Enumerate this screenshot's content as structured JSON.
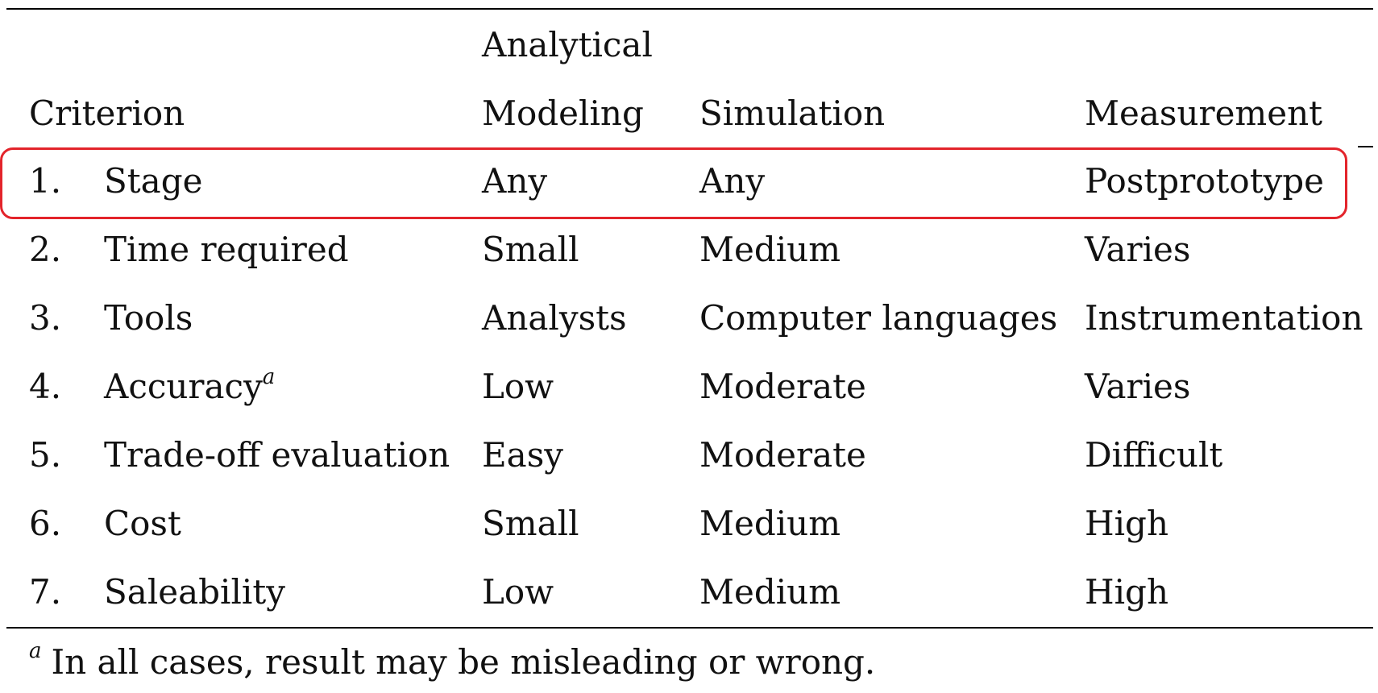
{
  "header": {
    "criterion": "Criterion",
    "analytical_line1": "Analytical",
    "analytical_line2": "Modeling",
    "simulation": "Simulation",
    "measurement": "Measurement"
  },
  "rows": [
    {
      "num": "1.",
      "criterion": "Stage",
      "analytical": "Any",
      "simulation": "Any",
      "measurement": "Postprototype"
    },
    {
      "num": "2.",
      "criterion": "Time required",
      "analytical": "Small",
      "simulation": "Medium",
      "measurement": "Varies"
    },
    {
      "num": "3.",
      "criterion": "Tools",
      "analytical": "Analysts",
      "simulation": "Computer languages",
      "measurement": "Instrumentation"
    },
    {
      "num": "4.",
      "criterion": "Accuracy",
      "criterion_sup": "a",
      "analytical": "Low",
      "simulation": "Moderate",
      "measurement": "Varies"
    },
    {
      "num": "5.",
      "criterion": "Trade-off evaluation",
      "analytical": "Easy",
      "simulation": "Moderate",
      "measurement": "Difficult"
    },
    {
      "num": "6.",
      "criterion": "Cost",
      "analytical": "Small",
      "simulation": "Medium",
      "measurement": "High"
    },
    {
      "num": "7.",
      "criterion": "Saleability",
      "analytical": "Low",
      "simulation": "Medium",
      "measurement": "High"
    }
  ],
  "footnote": {
    "marker": "a",
    "text": "In all cases, result may be misleading or wrong."
  },
  "highlight_color": "#e3242b"
}
